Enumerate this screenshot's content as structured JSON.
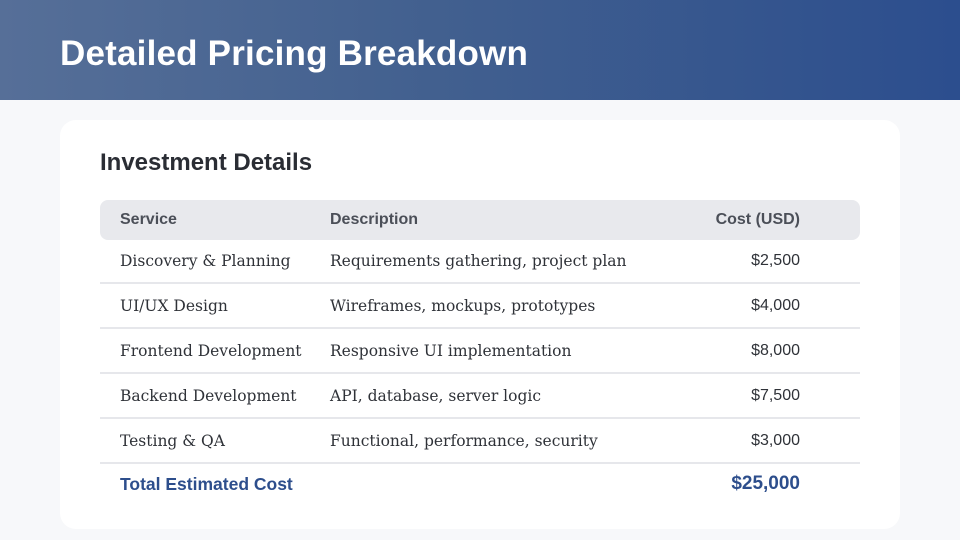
{
  "header": {
    "title": "Detailed Pricing Breakdown"
  },
  "card": {
    "title": "Investment Details"
  },
  "table": {
    "columns": [
      "Service",
      "Description",
      "Cost (USD)"
    ],
    "rows": [
      {
        "service": "Discovery & Planning",
        "description": "Requirements gathering, project plan",
        "cost": "$2,500"
      },
      {
        "service": "UI/UX Design",
        "description": "Wireframes, mockups, prototypes",
        "cost": "$4,000"
      },
      {
        "service": "Frontend Development",
        "description": "Responsive UI implementation",
        "cost": "$8,000"
      },
      {
        "service": "Backend Development",
        "description": "API, database, server logic",
        "cost": "$7,500"
      },
      {
        "service": "Testing & QA",
        "description": "Functional, performance, security",
        "cost": "$3,000"
      }
    ],
    "total": {
      "label": "Total Estimated Cost",
      "value": "$25,000"
    }
  },
  "colors": {
    "header_gradient_start": "#566f98",
    "header_gradient_end": "#2c4e8e",
    "accent": "#2d4e8c",
    "table_header_bg": "#e8e9ed",
    "page_bg": "#f7f8fa"
  }
}
